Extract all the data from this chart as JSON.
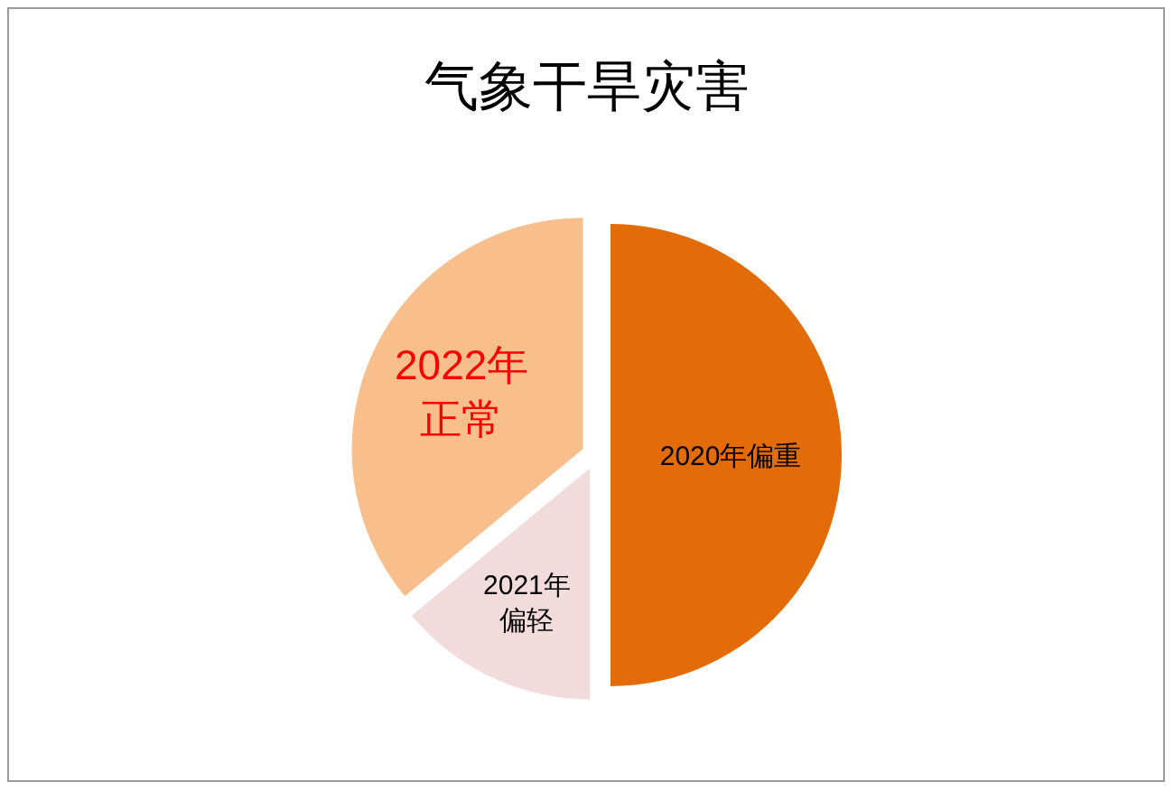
{
  "chart_data": {
    "type": "pie",
    "title": "气象干旱灾害",
    "categories": [
      "2020年偏重",
      "2021年偏轻",
      "2022年正常"
    ],
    "values": [
      50,
      14,
      36
    ],
    "colors": [
      "#e36c09",
      "#f2dcdb",
      "#f8be8c"
    ]
  }
}
